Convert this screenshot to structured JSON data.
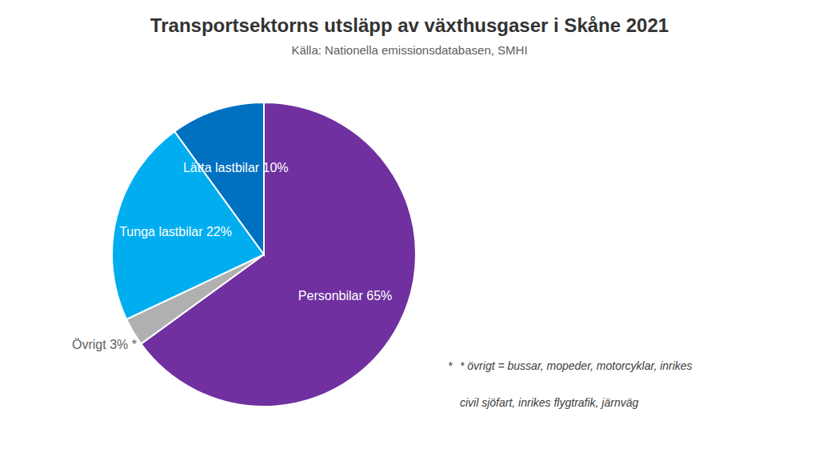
{
  "chart_data": {
    "type": "pie",
    "title": "Transportsektorns utsläpp av växthusgaser i Skåne 2021",
    "subtitle": "Källa: Nationella emissionsdatabasen, SMHI",
    "values": [
      65,
      3,
      22,
      10
    ],
    "value_labels": [
      "Personbilar 65%",
      "Övrigt 3% *",
      "Tunga lastbilar 22%",
      "Lätta lastbilar 10%"
    ],
    "colors": [
      "#7030A0",
      "#B0B0B0",
      "#00AEEF",
      "#0070C0"
    ],
    "data_labels": true,
    "annotations": [
      "*",
      "* övrigt = bussar, mopeder, motorcyklar, inrikes",
      "civil sjöfart, inrikes flygtrafik, järnväg"
    ]
  }
}
